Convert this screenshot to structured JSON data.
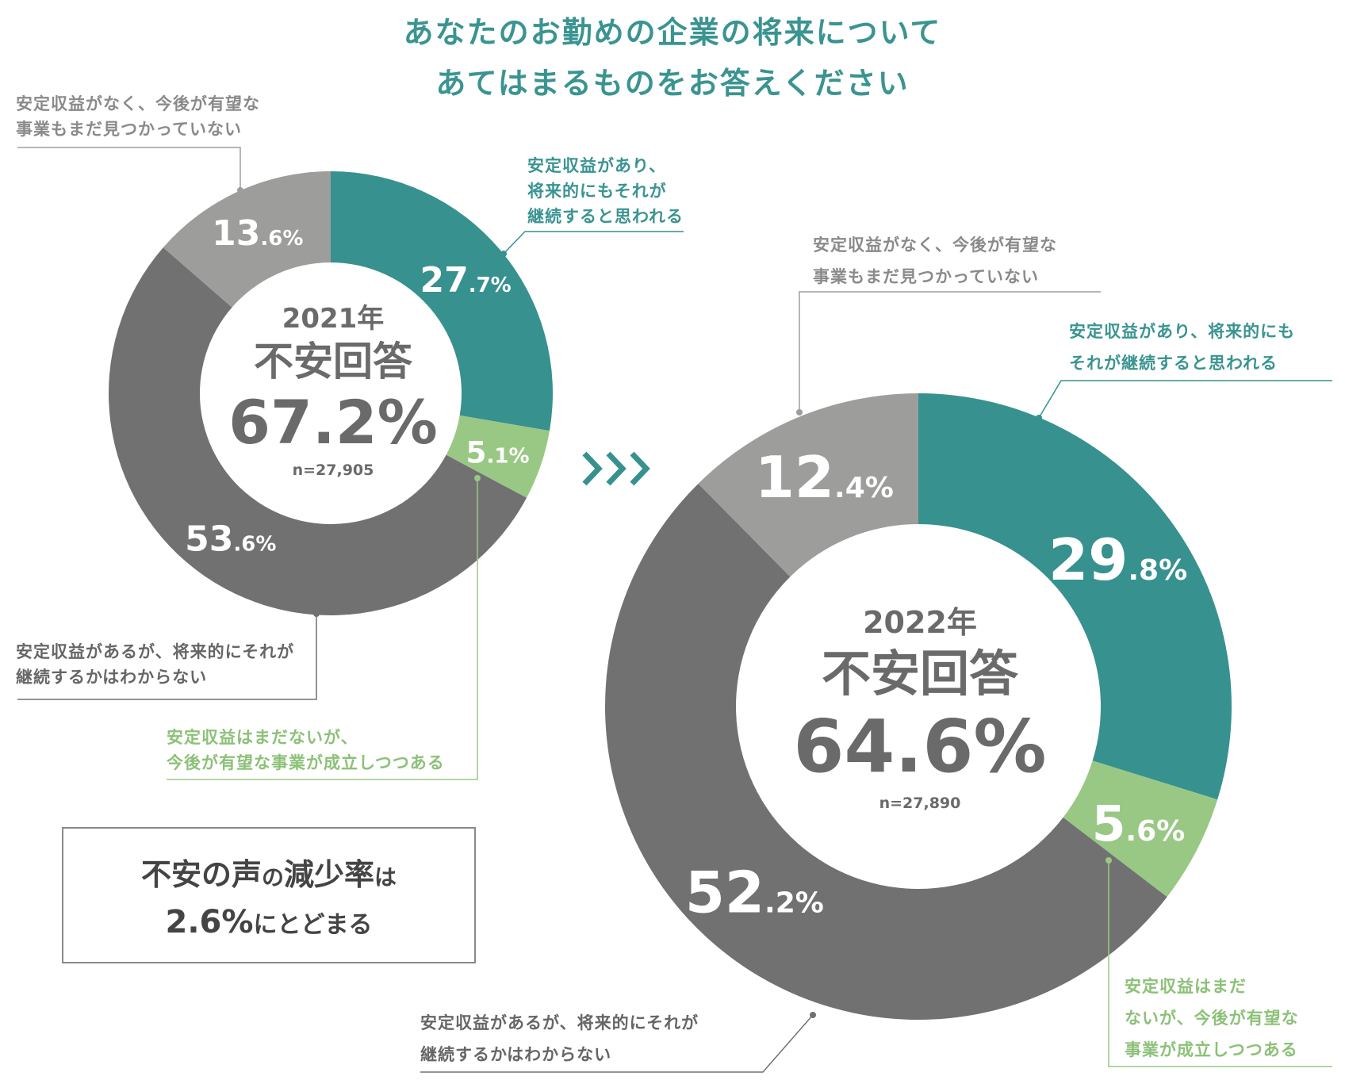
{
  "title": [
    "あなたのお勤めの企業の将来について",
    "あてはまるものをお答えください"
  ],
  "colors": {
    "teal": "#37918f",
    "green": "#99c884",
    "dark": "#717171",
    "grey": "#9d9d9c"
  },
  "chart_data": [
    {
      "type": "pie",
      "year_label": "2021年",
      "center_title": "不安回答",
      "center_value": "67.2%",
      "n_label": "n=27,905",
      "slices": [
        {
          "label": "安定収益があり、将来的にもそれが継続すると思われる",
          "value": 27.7,
          "int": "27",
          "dec": ".7",
          "pct": "%"
        },
        {
          "label": "安定収益はまだないが、今後が有望な事業が成立しつつある",
          "value": 5.1,
          "int": "5",
          "dec": ".1",
          "pct": "%"
        },
        {
          "label": "安定収益があるが、将来的にそれが継続するかはわからない",
          "value": 53.6,
          "int": "53",
          "dec": ".6",
          "pct": "%"
        },
        {
          "label": "安定収益がなく、今後が有望な事業もまだ見つかっていない",
          "value": 13.6,
          "int": "13",
          "dec": ".6",
          "pct": "%"
        }
      ]
    },
    {
      "type": "pie",
      "year_label": "2022年",
      "center_title": "不安回答",
      "center_value": "64.6%",
      "n_label": "n=27,890",
      "slices": [
        {
          "label": "安定収益があり、将来的にもそれが継続すると思われる",
          "value": 29.8,
          "int": "29",
          "dec": ".8",
          "pct": "%"
        },
        {
          "label": "安定収益はまだないが、今後が有望な事業が成立しつつある",
          "value": 5.6,
          "int": "5",
          "dec": ".6",
          "pct": "%"
        },
        {
          "label": "安定収益があるが、将来的にそれが継続するかはわからない",
          "value": 52.2,
          "int": "52",
          "dec": ".2",
          "pct": "%"
        },
        {
          "label": "安定収益がなく、今後が有望な事業もまだ見つかっていない",
          "value": 12.4,
          "int": "12",
          "dec": ".4",
          "pct": "%"
        }
      ]
    }
  ],
  "labels_2021": {
    "grey": [
      "安定収益がなく、今後が有望な",
      "事業もまだ見つかっていない"
    ],
    "teal": [
      "安定収益があり、",
      "将来的にもそれが",
      "継続すると思われる"
    ],
    "dark": [
      "安定収益があるが、将来的にそれが",
      "継続するかはわからない"
    ],
    "green": [
      "安定収益はまだないが、",
      "今後が有望な事業が成立しつつある"
    ]
  },
  "labels_2022": {
    "grey": [
      "安定収益がなく、今後が有望な",
      "事業もまだ見つかっていない"
    ],
    "teal": [
      "安定収益があり、将来的にも",
      "それが継続すると思われる"
    ],
    "dark": [
      "安定収益があるが、将来的にそれが",
      "継続するかはわからない"
    ],
    "green": [
      "安定収益はまだ",
      "ないが、今後が有望な",
      "事業が成立しつつある"
    ]
  },
  "callout": {
    "line1_a": "不安の声",
    "line1_b": "の",
    "line1_c": "減少率",
    "line1_d": "は",
    "line2_a": "2.6%",
    "line2_b": "にとどまる"
  }
}
